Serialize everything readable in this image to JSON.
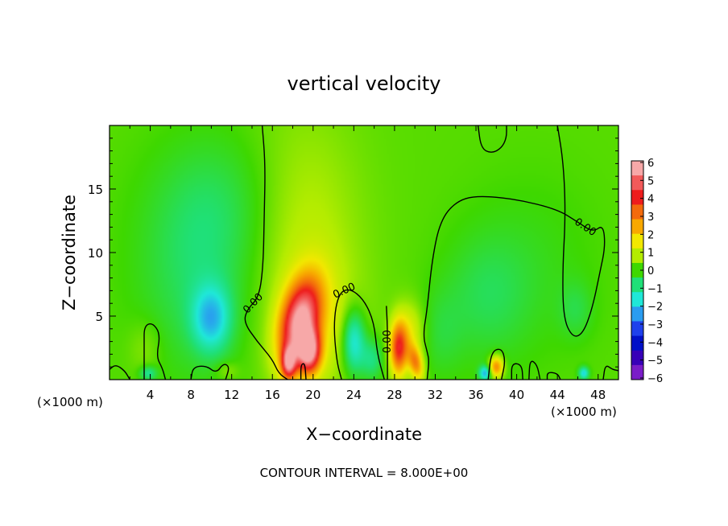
{
  "chart_data": {
    "type": "heatmap",
    "title": "vertical velocity",
    "xlabel": "X−coordinate",
    "ylabel": "Z−coordinate",
    "x_unit_left": "(×1000 m)",
    "x_unit_right": "(×1000 m)",
    "xlim": [
      0,
      50
    ],
    "ylim": [
      0,
      20
    ],
    "x_ticks": [
      4,
      8,
      12,
      16,
      20,
      24,
      28,
      32,
      36,
      40,
      44,
      48
    ],
    "y_ticks": [
      5,
      10,
      15
    ],
    "colorbar": {
      "ticks": [
        6,
        5,
        4,
        3,
        2,
        1,
        0,
        -1,
        -2,
        -3,
        -4,
        -5,
        -6
      ],
      "tick_labels": [
        "6",
        "5",
        "4",
        "3",
        "2",
        "1",
        "0",
        "−1",
        "−2",
        "−3",
        "−4",
        "−5",
        "−6"
      ],
      "colors": [
        "#f7a8a8",
        "#f25a5a",
        "#ee1c1c",
        "#f36a0c",
        "#f8a800",
        "#f2e800",
        "#b4ec00",
        "#3ed800",
        "#1fe078",
        "#1fe8d8",
        "#2a9cf0",
        "#1e40ec",
        "#0010c8",
        "#3800b8",
        "#7a1cc8"
      ]
    },
    "field": {
      "background": 0.2,
      "blobs": [
        {
          "x": 18.7,
          "z": 4.6,
          "sx": 1.3,
          "sz": 2.4,
          "a": 5.6,
          "rot": -18
        },
        {
          "x": 19.6,
          "z": 2.2,
          "sx": 0.8,
          "sz": 1.2,
          "a": 5.2,
          "rot": 0
        },
        {
          "x": 17.6,
          "z": 1.3,
          "sx": 0.5,
          "sz": 0.9,
          "a": 4.6,
          "rot": 0
        },
        {
          "x": 18.9,
          "z": 11.0,
          "sx": 4.0,
          "sz": 7.0,
          "a": 0.9,
          "rot": 0
        },
        {
          "x": 20.5,
          "z": 4.2,
          "sx": 2.8,
          "sz": 3.6,
          "a": 0.8,
          "rot": 0
        },
        {
          "x": 28.4,
          "z": 2.4,
          "sx": 0.6,
          "sz": 1.5,
          "a": 4.0,
          "rot": 0
        },
        {
          "x": 30.1,
          "z": 1.3,
          "sx": 0.5,
          "sz": 1.0,
          "a": 3.0,
          "rot": 15
        },
        {
          "x": 29.5,
          "z": 3.8,
          "sx": 1.0,
          "sz": 1.6,
          "a": 1.4,
          "rot": 0
        },
        {
          "x": 38.0,
          "z": 1.0,
          "sx": 0.5,
          "sz": 0.6,
          "a": 3.2,
          "rot": 0
        },
        {
          "x": 10.0,
          "z": 4.8,
          "sx": 1.3,
          "sz": 1.8,
          "a": -2.2,
          "rot": 0
        },
        {
          "x": 8.8,
          "z": 8.0,
          "sx": 4.2,
          "sz": 5.5,
          "a": -0.9,
          "rot": 0
        },
        {
          "x": 11.0,
          "z": 14.0,
          "sx": 4.5,
          "sz": 4.0,
          "a": -0.6,
          "rot": 0
        },
        {
          "x": 24.0,
          "z": 3.0,
          "sx": 0.8,
          "sz": 1.8,
          "a": -2.4,
          "rot": 0
        },
        {
          "x": 25.8,
          "z": 1.6,
          "sx": 0.8,
          "sz": 1.2,
          "a": -1.3,
          "rot": 0
        },
        {
          "x": 37.0,
          "z": 6.5,
          "sx": 3.0,
          "sz": 3.5,
          "a": -0.7,
          "rot": 0
        },
        {
          "x": 41.5,
          "z": 9.0,
          "sx": 4.5,
          "sz": 5.0,
          "a": -0.35,
          "rot": 0
        },
        {
          "x": 3.8,
          "z": 0.5,
          "sx": 0.6,
          "sz": 0.4,
          "a": -1.4,
          "rot": 0
        },
        {
          "x": 36.9,
          "z": 0.5,
          "sx": 0.4,
          "sz": 0.4,
          "a": -2.6,
          "rot": 0
        },
        {
          "x": 46.6,
          "z": 0.5,
          "sx": 0.35,
          "sz": 0.35,
          "a": -2.2,
          "rot": 0
        },
        {
          "x": 45.8,
          "z": 5.5,
          "sx": 1.2,
          "sz": 1.6,
          "a": -0.6,
          "rot": 0
        },
        {
          "x": 32.5,
          "z": 3.5,
          "sx": 1.6,
          "sz": 2.5,
          "a": -0.5,
          "rot": 0
        },
        {
          "x": 3.5,
          "z": 2.5,
          "sx": 1.2,
          "sz": 1.6,
          "a": 0.5,
          "rot": 0
        },
        {
          "x": 11.5,
          "z": 0.7,
          "sx": 0.8,
          "sz": 0.5,
          "a": 0.6,
          "rot": 0
        }
      ]
    },
    "contours": [
      {
        "label": "0.00",
        "points": [
          [
            15.0,
            20
          ],
          [
            15.3,
            17
          ],
          [
            15.2,
            13
          ],
          [
            15.1,
            9
          ],
          [
            14.7,
            6.5
          ],
          [
            13.5,
            5.5
          ],
          [
            13.2,
            4.5
          ],
          [
            14.5,
            3.0
          ],
          [
            16.0,
            1.6
          ],
          [
            16.6,
            0.5
          ],
          [
            17.5,
            0
          ]
        ]
      },
      {
        "label": "0.00",
        "points": [
          [
            22.8,
            0
          ],
          [
            22.3,
            1.5
          ],
          [
            22.0,
            4.5
          ],
          [
            22.5,
            6.8
          ],
          [
            23.6,
            7.2
          ],
          [
            25.0,
            6.3
          ],
          [
            26.0,
            4.5
          ],
          [
            26.3,
            2.0
          ],
          [
            27.0,
            0
          ]
        ]
      },
      {
        "label": "0.00",
        "points": [
          [
            27.3,
            0
          ],
          [
            27.3,
            1.8
          ],
          [
            27.3,
            4.2
          ],
          [
            27.2,
            5.8
          ]
        ]
      },
      {
        "label": "0.00",
        "points": [
          [
            31.2,
            0
          ],
          [
            31.4,
            1.5
          ],
          [
            31.2,
            2.2
          ],
          [
            30.8,
            3.5
          ],
          [
            31.2,
            5.5
          ],
          [
            31.7,
            9.5
          ],
          [
            32.5,
            12.5
          ],
          [
            34.0,
            14.0
          ],
          [
            36.0,
            14.5
          ],
          [
            40.0,
            14.2
          ],
          [
            44.0,
            13.4
          ],
          [
            46.0,
            12.4
          ],
          [
            47.5,
            11.6
          ],
          [
            48.5,
            12.2
          ],
          [
            48.7,
            10.5
          ],
          [
            48.2,
            8.5
          ],
          [
            47.4,
            5.5
          ],
          [
            46.5,
            3.6
          ],
          [
            45.5,
            3.3
          ],
          [
            44.6,
            4.8
          ],
          [
            44.5,
            8.5
          ],
          [
            44.8,
            13.0
          ],
          [
            44.6,
            17.0
          ],
          [
            44.0,
            20
          ]
        ]
      },
      {
        "label": "",
        "points": [
          [
            36.2,
            20
          ],
          [
            36.5,
            18.2
          ],
          [
            37.5,
            17.8
          ],
          [
            38.5,
            18.2
          ],
          [
            39.0,
            19.0
          ],
          [
            39.0,
            20
          ]
        ]
      },
      {
        "label": "",
        "points": [
          [
            0.0,
            0.8
          ],
          [
            0.6,
            1.2
          ],
          [
            1.5,
            0.7
          ],
          [
            2.0,
            0
          ]
        ]
      },
      {
        "label": "",
        "points": [
          [
            3.4,
            0
          ],
          [
            3.4,
            2.8
          ],
          [
            3.4,
            4.2
          ],
          [
            4.2,
            4.5
          ],
          [
            5.0,
            3.6
          ],
          [
            4.6,
            1.8
          ],
          [
            5.2,
            0.9
          ],
          [
            5.5,
            0
          ]
        ]
      },
      {
        "label": "",
        "points": [
          [
            8.0,
            0
          ],
          [
            8.2,
            1.0
          ],
          [
            9.5,
            1.1
          ],
          [
            10.5,
            0.5
          ],
          [
            11.2,
            1.3
          ],
          [
            11.8,
            1.0
          ],
          [
            11.4,
            0
          ]
        ]
      },
      {
        "label": "",
        "points": [
          [
            18.8,
            0
          ],
          [
            18.8,
            1.2
          ],
          [
            19.2,
            1.3
          ],
          [
            19.3,
            0
          ]
        ]
      },
      {
        "label": "",
        "points": [
          [
            37.2,
            0
          ],
          [
            37.5,
            2.2
          ],
          [
            38.5,
            2.5
          ],
          [
            38.9,
            1.5
          ],
          [
            38.5,
            0
          ]
        ]
      },
      {
        "label": "",
        "points": [
          [
            39.5,
            0
          ],
          [
            39.5,
            1.3
          ],
          [
            40.5,
            1.2
          ],
          [
            40.6,
            0
          ]
        ]
      },
      {
        "label": "",
        "points": [
          [
            41.2,
            0
          ],
          [
            41.3,
            1.6
          ],
          [
            42.0,
            1.2
          ],
          [
            42.3,
            0
          ]
        ]
      },
      {
        "label": "",
        "points": [
          [
            43.0,
            0
          ],
          [
            43.0,
            0.6
          ],
          [
            44.0,
            0.5
          ],
          [
            44.3,
            0
          ]
        ]
      },
      {
        "label": "",
        "points": [
          [
            48.5,
            0
          ],
          [
            48.7,
            1.2
          ],
          [
            49.4,
            0.8
          ],
          [
            50.0,
            0.7
          ]
        ]
      }
    ],
    "footer": "CONTOUR INTERVAL = 8.000E+00"
  }
}
